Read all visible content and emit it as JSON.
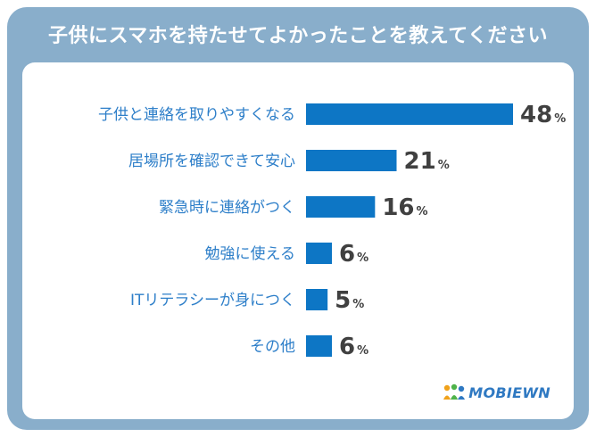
{
  "title": "子供にスマホを持たせてよかったことを教えてください",
  "colors": {
    "frame": "#89aecb",
    "bar": "#0d76c5",
    "category_text": "#2e7fc9",
    "value_text": "#404040"
  },
  "logo": {
    "text": "MOBIEWN",
    "icon": "people-network-logo-icon"
  },
  "chart_data": {
    "type": "bar",
    "orientation": "horizontal",
    "title": "子供にスマホを持たせてよかったことを教えてください",
    "xlabel": "",
    "ylabel": "",
    "unit": "%",
    "xlim": [
      0,
      48
    ],
    "categories": [
      "子供と連絡を取りやすくなる",
      "居場所を確認できて安心",
      "緊急時に連絡がつく",
      "勉強に使える",
      "ITリテラシーが身につく",
      "その他"
    ],
    "values": [
      48,
      21,
      16,
      6,
      5,
      6
    ]
  }
}
